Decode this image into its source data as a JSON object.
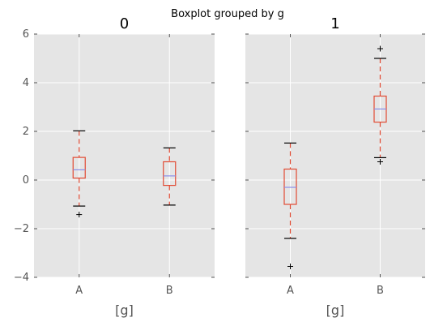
{
  "figure": {
    "suptitle": "Boxplot grouped by g"
  },
  "chart_data": {
    "type": "boxplot",
    "title": "Boxplot grouped by g",
    "ylim": [
      -4,
      6
    ],
    "yticks": [
      -4,
      -2,
      0,
      2,
      4,
      6
    ],
    "grid": true,
    "colors": {
      "background": "#e5e5e5",
      "grid": "#ffffff",
      "box": "#e24a33",
      "median": "#8b8ee8",
      "cap": "#000000",
      "flier": "#000000"
    },
    "panels": [
      {
        "title": "0",
        "xlabel": "[g]",
        "categories": [
          "A",
          "B"
        ],
        "boxes": [
          {
            "label": "A",
            "whisker_low": -1.07,
            "q1": 0.08,
            "median": 0.42,
            "q3": 0.93,
            "whisker_high": 2.02,
            "outliers": [
              -1.42
            ]
          },
          {
            "label": "B",
            "whisker_low": -1.03,
            "q1": -0.22,
            "median": 0.17,
            "q3": 0.75,
            "whisker_high": 1.32,
            "outliers": []
          }
        ]
      },
      {
        "title": "1",
        "xlabel": "[g]",
        "categories": [
          "A",
          "B"
        ],
        "boxes": [
          {
            "label": "A",
            "whisker_low": -2.4,
            "q1": -1.0,
            "median": -0.3,
            "q3": 0.45,
            "whisker_high": 1.52,
            "outliers": [
              -3.55
            ]
          },
          {
            "label": "B",
            "whisker_low": 0.92,
            "q1": 2.38,
            "median": 2.92,
            "q3": 3.45,
            "whisker_high": 5.0,
            "outliers": [
              0.75,
              5.4
            ]
          }
        ]
      }
    ]
  }
}
